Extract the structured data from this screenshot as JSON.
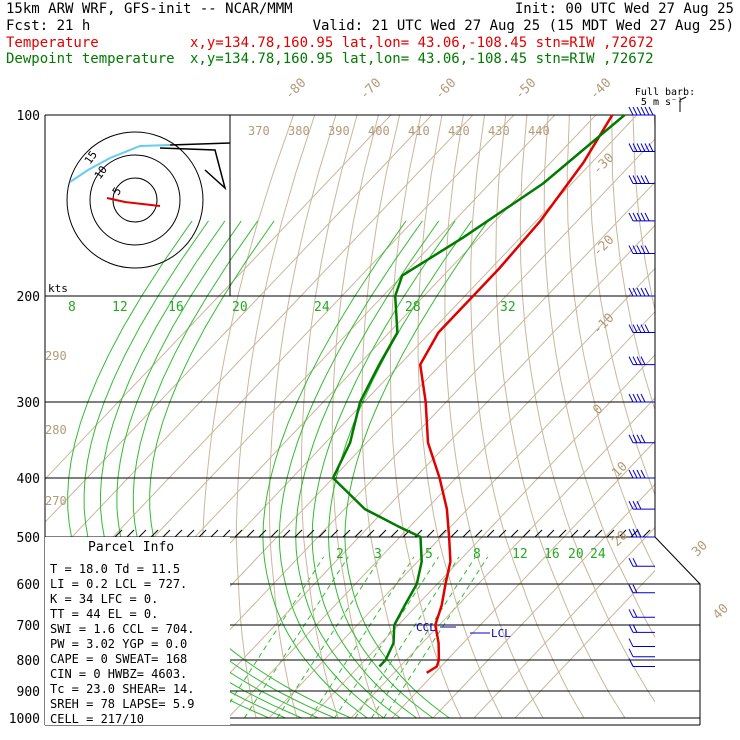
{
  "header": {
    "line1_left": "15km ARW WRF, GFS-init  -- NCAR/MMM",
    "line1_right": "Init: 00 UTC Wed 27 Aug 25",
    "line2_left": "Fcst:   21 h",
    "line2_right": "Valid: 21 UTC Wed 27 Aug 25 (15 MDT Wed 27 Aug 25)",
    "temp_label": "Temperature",
    "temp_info": "x,y=134.78,160.95   lat,lon= 43.06,-108.45  stn=RIW ,72672",
    "dew_label": "Dewpoint temperature",
    "dew_info": "x,y=134.78,160.95   lat,lon= 43.06,-108.45  stn=RIW ,72672"
  },
  "barb_legend": {
    "line1": "Full barb:",
    "line2": "5 m s⁻¹"
  },
  "hodograph": {
    "units": "kts",
    "ring_labels": [
      "15",
      "10",
      "5"
    ]
  },
  "parcel_info": {
    "title": "Parcel Info",
    "rows": [
      "T  =   18.0 Td =  11.5",
      "LI =    0.2 LCL =  727.",
      "K  =     34 LFC =    0.",
      "TT =     44 EL  =    0.",
      "SWI =   1.6 CCL =  704.",
      "PW =   3.02 YGP =   0.0",
      "CAPE =    0 SWEAT=  168",
      "CIN =     0 HWBZ= 4603.",
      "Tc =   23.0 SHEAR=  14.",
      "SREH =   78 LAPSE=  5.9",
      "CELL = 217/10"
    ]
  },
  "annotations": {
    "ccl": "CCL",
    "lcl": "LCL"
  },
  "chart_data": {
    "type": "line",
    "title": "",
    "xlabel": "",
    "ylabel": "",
    "y_scale": "log-pressure",
    "pressure_ticks": [
      100,
      200,
      300,
      400,
      500,
      600,
      700,
      800,
      900,
      1000
    ],
    "upper_pressure_ticks": [
      100,
      200
    ],
    "isotherm_labels_top": [
      "-80",
      "-70",
      "-60",
      "-50",
      "-40"
    ],
    "isotherm_labels_right": [
      "-30",
      "-20",
      "-10",
      "0",
      "10",
      "20",
      "30",
      "40"
    ],
    "theta_labels": [
      "370",
      "380",
      "390",
      "400",
      "410",
      "420",
      "430",
      "440"
    ],
    "theta_labels_left": [
      "290",
      "280",
      "270"
    ],
    "hodo_speed_labels": [
      "8",
      "12",
      "16",
      "20",
      "24",
      "28",
      "32"
    ],
    "mixing_ratio_labels": [
      "2",
      "3",
      "5",
      "8",
      "12",
      "16",
      "20",
      "24"
    ],
    "series": [
      {
        "name": "Temperature",
        "color": "#e00000",
        "points": [
          [
            100,
            -66
          ],
          [
            120,
            -62
          ],
          [
            150,
            -59
          ],
          [
            180,
            -58
          ],
          [
            200,
            -58
          ],
          [
            230,
            -58
          ],
          [
            260,
            -55
          ],
          [
            300,
            -45
          ],
          [
            350,
            -35
          ],
          [
            400,
            -24
          ],
          [
            450,
            -15
          ],
          [
            500,
            -8
          ],
          [
            550,
            -2
          ],
          [
            600,
            2
          ],
          [
            650,
            6
          ],
          [
            700,
            9
          ],
          [
            750,
            14
          ],
          [
            800,
            18
          ],
          [
            820,
            19
          ],
          [
            840,
            18
          ]
        ]
      },
      {
        "name": "Dewpoint temperature",
        "color": "#007a00",
        "points": [
          [
            100,
            -63
          ],
          [
            130,
            -67
          ],
          [
            160,
            -74
          ],
          [
            185,
            -80
          ],
          [
            200,
            -77
          ],
          [
            230,
            -68
          ],
          [
            260,
            -65
          ],
          [
            300,
            -61
          ],
          [
            350,
            -54
          ],
          [
            400,
            -50
          ],
          [
            450,
            -35
          ],
          [
            480,
            -23
          ],
          [
            500,
            -15
          ],
          [
            550,
            -9
          ],
          [
            600,
            -5
          ],
          [
            650,
            -3
          ],
          [
            700,
            -1
          ],
          [
            750,
            3
          ],
          [
            800,
            5
          ],
          [
            820,
            5
          ]
        ]
      }
    ],
    "wind_profile": [
      [
        100,
        240,
        30
      ],
      [
        115,
        240,
        30
      ],
      [
        130,
        240,
        25
      ],
      [
        150,
        245,
        25
      ],
      [
        170,
        245,
        25
      ],
      [
        200,
        245,
        25
      ],
      [
        230,
        245,
        25
      ],
      [
        260,
        245,
        20
      ],
      [
        300,
        245,
        20
      ],
      [
        350,
        245,
        20
      ],
      [
        400,
        245,
        20
      ],
      [
        450,
        245,
        15
      ],
      [
        500,
        240,
        15
      ],
      [
        560,
        240,
        10
      ],
      [
        620,
        230,
        10
      ],
      [
        680,
        220,
        10
      ],
      [
        720,
        220,
        10
      ],
      [
        760,
        200,
        5
      ],
      [
        790,
        190,
        5
      ],
      [
        820,
        180,
        5
      ]
    ]
  }
}
